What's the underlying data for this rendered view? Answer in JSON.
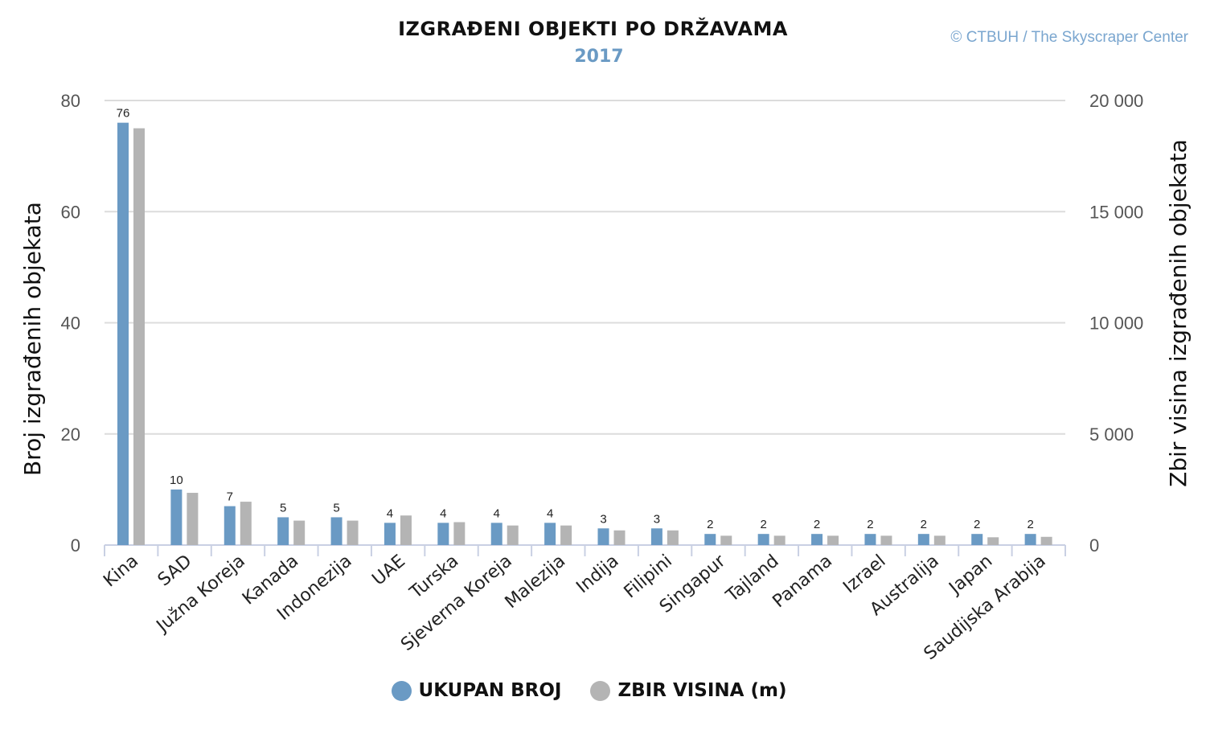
{
  "title": "IZGRAĐENI OBJEKTI PO DRŽAVAMA",
  "subtitle": "2017",
  "credit": "© CTBUH / The Skyscraper Center",
  "colors": {
    "count": "#6a9ac4",
    "height": "#b4b4b4",
    "grid": "#dcdcdc",
    "axis": "#c9d0e3"
  },
  "chart_data": {
    "type": "bar",
    "categories": [
      "Kina",
      "SAD",
      "Južna Koreja",
      "Kanada",
      "Indonezija",
      "UAE",
      "Turska",
      "Sjeverna Koreja",
      "Malezija",
      "Indija",
      "Filipini",
      "Singapur",
      "Tajland",
      "Panama",
      "Izrael",
      "Australija",
      "Japan",
      "Saudijska Arabija"
    ],
    "series": [
      {
        "name": "UKUPAN BROJ",
        "axis": "left",
        "values": [
          76,
          10,
          7,
          5,
          5,
          4,
          4,
          4,
          4,
          3,
          3,
          2,
          2,
          2,
          2,
          2,
          2,
          2
        ],
        "data_labels": true
      },
      {
        "name": "ZBIR VISINA (m)",
        "axis": "right",
        "values": [
          18750,
          2350,
          1950,
          1100,
          1100,
          1330,
          1030,
          880,
          880,
          660,
          660,
          420,
          420,
          420,
          420,
          420,
          350,
          370
        ],
        "data_labels": false
      }
    ],
    "ylabel": "Broj izgrađenih objekata",
    "y2label": "Zbir visina izgrađenih objekata",
    "ylim": [
      0,
      80
    ],
    "y2lim": [
      0,
      20000
    ],
    "yticks": [
      "0",
      "20",
      "40",
      "60",
      "80"
    ],
    "y2ticks": [
      "0",
      "5 000",
      "10 000",
      "15 000",
      "20 000"
    ],
    "grid": true,
    "legend_position": "bottom-center"
  }
}
